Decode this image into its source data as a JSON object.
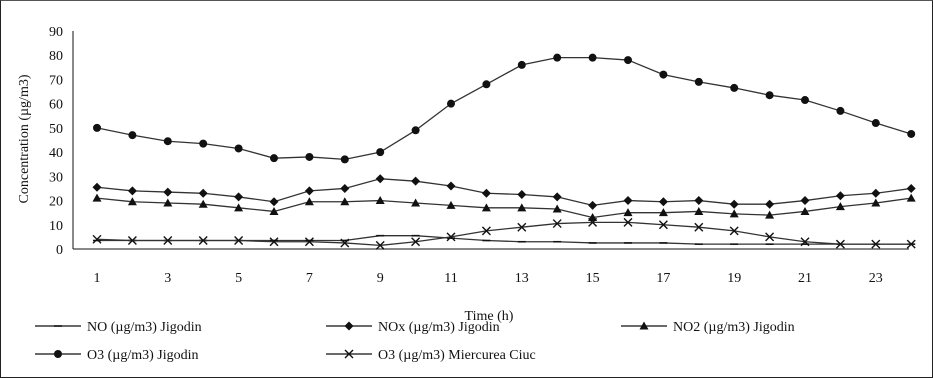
{
  "chart_data": {
    "type": "line",
    "title": "",
    "xlabel": "Time (h)",
    "ylabel": "Concentration (µg/m3)",
    "ylim": [
      0,
      90
    ],
    "yticks": [
      0,
      10,
      20,
      30,
      40,
      50,
      60,
      70,
      80,
      90
    ],
    "xlim": [
      1,
      24
    ],
    "xticks": [
      1,
      3,
      5,
      7,
      9,
      11,
      13,
      15,
      17,
      19,
      21,
      23
    ],
    "grid": false,
    "legend_position": "bottom",
    "series": [
      {
        "name": "NO (µg/m3) Jigodin",
        "marker": "dash",
        "x": [
          1,
          2,
          3,
          4,
          5,
          6,
          7,
          8,
          9,
          10,
          11,
          12,
          13,
          14,
          15,
          16,
          17,
          18,
          19,
          20,
          21,
          22,
          23,
          24
        ],
        "values": [
          3.5,
          3.5,
          3.5,
          3.5,
          3.5,
          3.5,
          3.5,
          3.5,
          5.5,
          5.5,
          4.5,
          3.5,
          3,
          3,
          2.5,
          2.5,
          2.5,
          2,
          2,
          2,
          2,
          2,
          2,
          2
        ]
      },
      {
        "name": "NOx (µg/m3) Jigodin",
        "marker": "diamond",
        "x": [
          1,
          2,
          3,
          4,
          5,
          6,
          7,
          8,
          9,
          10,
          11,
          12,
          13,
          14,
          15,
          16,
          17,
          18,
          19,
          20,
          21,
          22,
          23,
          24
        ],
        "values": [
          25.5,
          24,
          23.5,
          23,
          21.5,
          19.5,
          24,
          25,
          29,
          28,
          26,
          23,
          22.5,
          21.5,
          18,
          20,
          19.5,
          20,
          18.5,
          18.5,
          20,
          22,
          23,
          25
        ]
      },
      {
        "name": "NO2 (µg/m3) Jigodin",
        "marker": "triangle",
        "x": [
          1,
          2,
          3,
          4,
          5,
          6,
          7,
          8,
          9,
          10,
          11,
          12,
          13,
          14,
          15,
          16,
          17,
          18,
          19,
          20,
          21,
          22,
          23,
          24
        ],
        "values": [
          21,
          19.5,
          19,
          18.5,
          17,
          15.5,
          19.5,
          19.5,
          20,
          19,
          18,
          17,
          17,
          16.5,
          13,
          15,
          15,
          15.5,
          14.5,
          14,
          15.5,
          17.5,
          19,
          21
        ]
      },
      {
        "name": "O3 (µg/m3) Jigodin",
        "marker": "circle",
        "x": [
          1,
          2,
          3,
          4,
          5,
          6,
          7,
          8,
          9,
          10,
          11,
          12,
          13,
          14,
          15,
          16,
          17,
          18,
          19,
          20,
          21,
          22,
          23,
          24
        ],
        "values": [
          50,
          47,
          44.5,
          43.5,
          41.5,
          37.5,
          38,
          37,
          40,
          49,
          60,
          68,
          76,
          79,
          79,
          78,
          72,
          69,
          66.5,
          63.5,
          61.5,
          57,
          52,
          47.5
        ]
      },
      {
        "name": "O3 (µg/m3) Miercurea Ciuc",
        "marker": "x",
        "x": [
          1,
          2,
          3,
          4,
          5,
          6,
          7,
          8,
          9,
          10,
          11,
          12,
          13,
          14,
          15,
          16,
          17,
          18,
          19,
          20,
          21,
          22,
          23,
          24
        ],
        "values": [
          4,
          3.5,
          3.5,
          3.5,
          3.5,
          3,
          3,
          2.5,
          1.5,
          3,
          5,
          7.5,
          9,
          10.5,
          11,
          11,
          10,
          9,
          7.5,
          5,
          3,
          2,
          2,
          2
        ]
      }
    ]
  }
}
